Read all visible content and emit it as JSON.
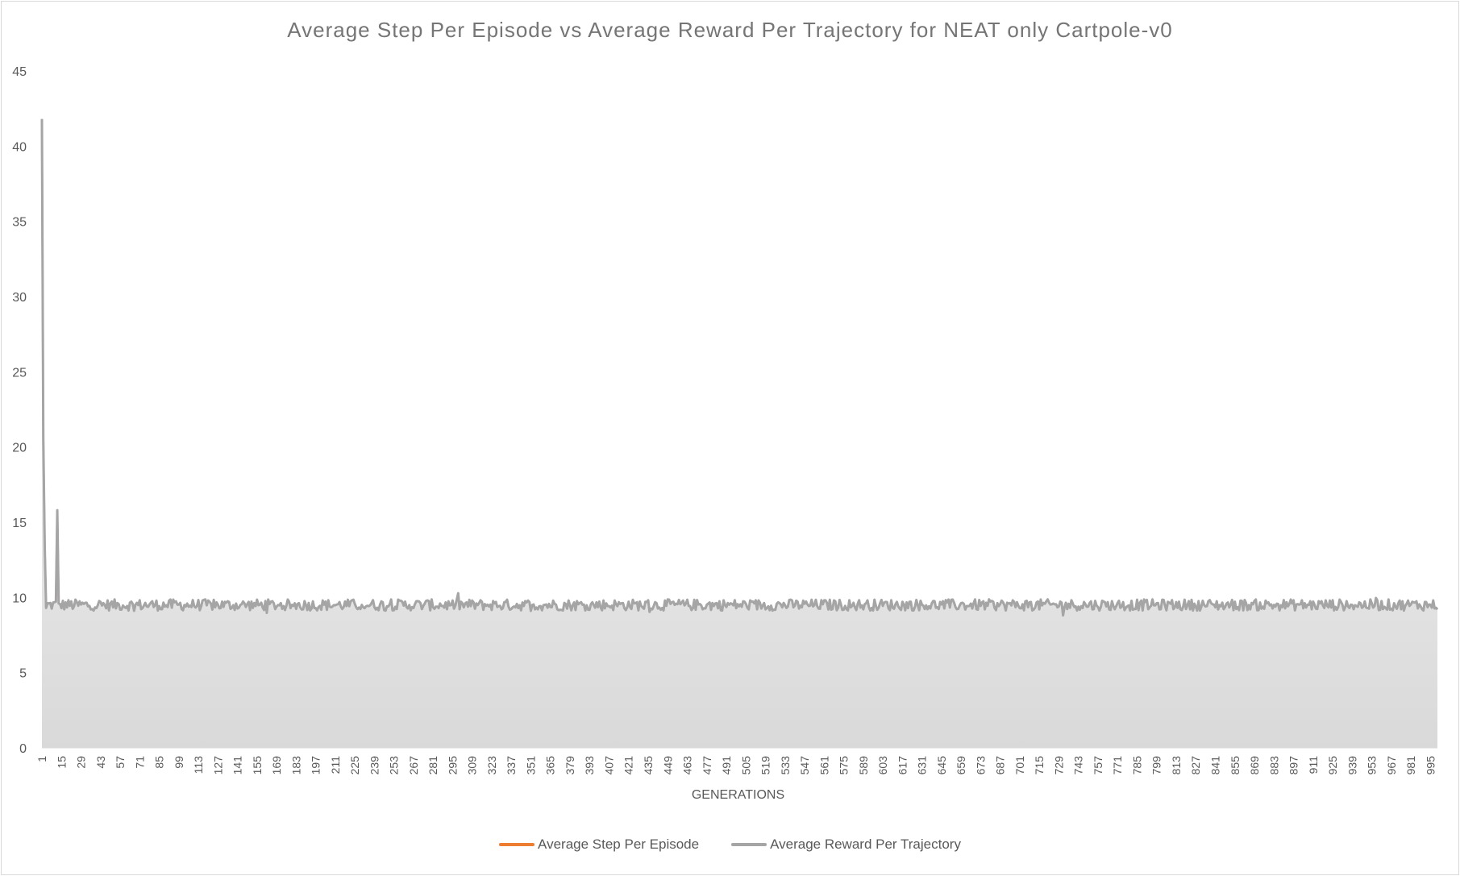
{
  "chart_data": {
    "type": "area",
    "title": "Average Step Per Episode vs Average Reward Per Trajectory for NEAT only Cartpole-v0",
    "xlabel": "GENERATIONS",
    "ylabel": "",
    "ylim": [
      0,
      45
    ],
    "yticks": [
      0,
      5,
      10,
      15,
      20,
      25,
      30,
      35,
      40,
      45
    ],
    "xlim": [
      1,
      1000
    ],
    "xticks": [
      1,
      15,
      29,
      43,
      57,
      71,
      85,
      99,
      113,
      127,
      141,
      155,
      169,
      183,
      197,
      211,
      225,
      239,
      253,
      267,
      281,
      295,
      309,
      323,
      337,
      351,
      365,
      379,
      393,
      407,
      421,
      435,
      449,
      463,
      477,
      491,
      505,
      519,
      533,
      547,
      561,
      575,
      589,
      603,
      617,
      631,
      645,
      659,
      673,
      687,
      701,
      715,
      729,
      743,
      757,
      771,
      785,
      799,
      813,
      827,
      841,
      855,
      869,
      883,
      897,
      911,
      925,
      939,
      953,
      967,
      981,
      995
    ],
    "grid": false,
    "legend_position": "bottom",
    "series": [
      {
        "name": "Average Step Per Episode",
        "color": "#ed7d31",
        "baseline": 9.5,
        "spikes": [
          [
            1,
            41.8
          ],
          [
            2,
            20.5
          ],
          [
            3,
            13.4
          ],
          [
            4,
            9.3
          ],
          [
            12,
            15.8
          ],
          [
            13,
            9.6
          ]
        ],
        "values_approx": "≈9.5 ± 0.4 for generations 14–1000"
      },
      {
        "name": "Average Reward Per Trajectory",
        "color": "#a5a5a5",
        "baseline": 9.5,
        "spikes": [
          [
            1,
            41.8
          ],
          [
            2,
            20.5
          ],
          [
            3,
            13.4
          ],
          [
            4,
            9.3
          ],
          [
            12,
            15.8
          ],
          [
            13,
            9.6
          ]
        ],
        "values_approx": "≈9.5 ± 0.4 for generations 14–1000"
      }
    ]
  }
}
